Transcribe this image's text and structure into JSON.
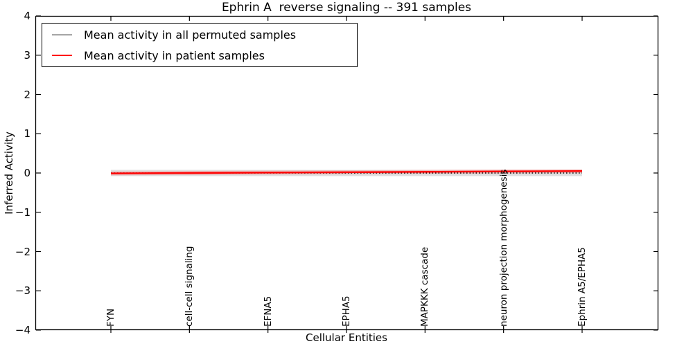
{
  "chart_data": {
    "type": "line",
    "title": "Ephrin A  reverse signaling -- 391 samples",
    "xlabel": "Cellular Entities",
    "ylabel": "Inferred Activity",
    "ylim": [
      -4,
      4
    ],
    "yticks": [
      4,
      3,
      2,
      1,
      0,
      -1,
      -2,
      -3,
      -4
    ],
    "ytick_labels": [
      "4",
      "3",
      "2",
      "1",
      "0",
      "−1",
      "−2",
      "−3",
      "−4"
    ],
    "categories": [
      "FYN",
      "cell-cell signaling",
      "EFNA5",
      "EPHA5",
      "MAPKKK cascade",
      "neuron projection morphogenesis",
      "Ephrin A5/EPHA5"
    ],
    "series": [
      {
        "name": "Mean activity in all permuted samples",
        "color": "#000000",
        "line_style": "dotted",
        "line_width": 1.4,
        "legend_line_width": 1.5,
        "values": [
          0.0,
          0.0,
          0.0,
          0.0,
          0.0,
          0.0,
          0.0
        ],
        "band_halfwidth": 0.08,
        "band_color": "rgba(128,128,128,0.25)"
      },
      {
        "name": "Mean activity in patient samples",
        "color": "#ff0000",
        "line_style": "solid",
        "line_width": 2.4,
        "legend_line_width": 2.0,
        "values": [
          -0.01,
          0.0,
          0.01,
          0.02,
          0.03,
          0.04,
          0.05
        ],
        "band_halfwidth": 0.05,
        "band_color": "rgba(255,70,70,0.25)"
      }
    ],
    "legend_position": "upper left",
    "grid": false
  }
}
